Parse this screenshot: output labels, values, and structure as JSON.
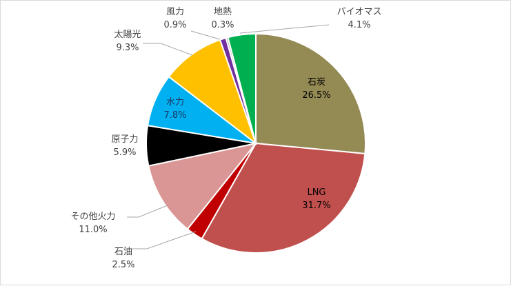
{
  "chart_data": {
    "type": "pie",
    "title": "",
    "categories": [
      "石炭",
      "LNG",
      "石油",
      "その他火力",
      "原子力",
      "水力",
      "太陽光",
      "風力",
      "地熱",
      "バイオマス"
    ],
    "values": [
      26.5,
      31.7,
      2.5,
      11.0,
      5.9,
      7.8,
      9.3,
      0.9,
      0.3,
      4.1
    ],
    "value_labels": [
      "26.5%",
      "31.7%",
      "2.5%",
      "11.0%",
      "5.9%",
      "7.8%",
      "9.3%",
      "0.9%",
      "0.3%",
      "4.1%"
    ],
    "colors": [
      "#948a54",
      "#c0504d",
      "#c00000",
      "#d99694",
      "#000000",
      "#00b0f0",
      "#ffc000",
      "#7030a0",
      "#a6a6a6",
      "#00b050"
    ],
    "start_angle_deg": 0,
    "direction": "clockwise",
    "legend": "none"
  }
}
